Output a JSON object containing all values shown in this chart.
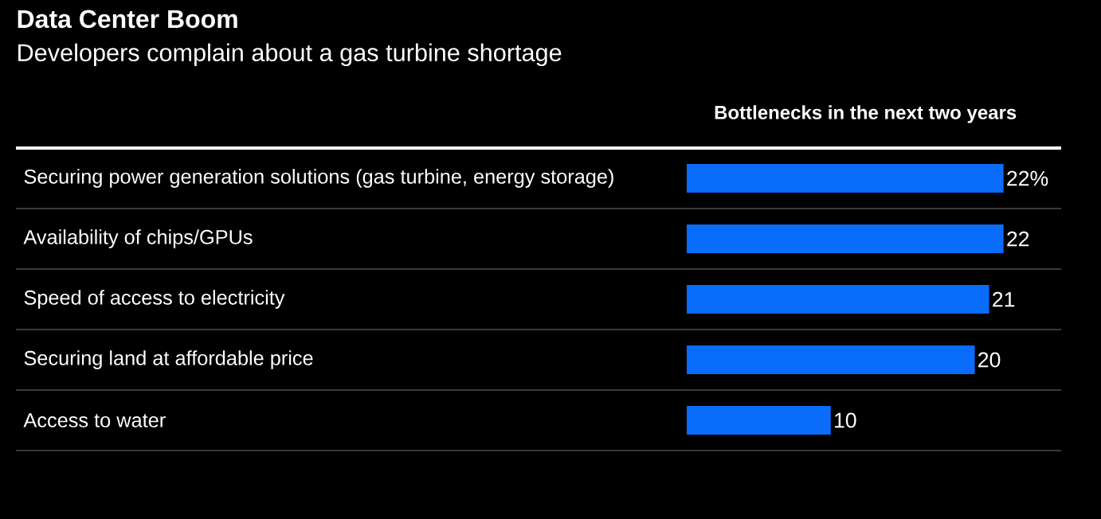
{
  "chart_data": {
    "type": "bar",
    "orientation": "horizontal",
    "title": "Data Center Boom",
    "subtitle": "Developers complain about a gas turbine shortage",
    "xlabel": "Bottlenecks in the next two years",
    "categories": [
      "Securing power generation solutions (gas turbine, energy storage)",
      "Availability of chips/GPUs",
      "Speed of access to electricity",
      "Securing land at affordable price",
      "Access to water"
    ],
    "values": [
      22,
      22,
      21,
      20,
      10
    ],
    "value_labels": [
      "22%",
      "22",
      "21",
      "20",
      "10"
    ],
    "color": "#0a6cfa",
    "xlim": [
      0,
      26
    ],
    "grid": "y",
    "tick_labels": "y"
  }
}
